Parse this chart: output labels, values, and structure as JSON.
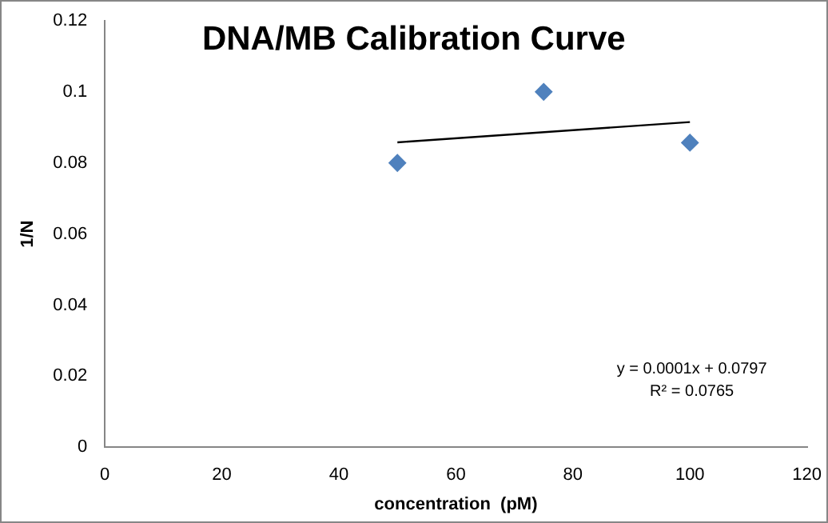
{
  "chart_data": {
    "type": "scatter",
    "title": "DNA/MB Calibration Curve",
    "xlabel": "concentration  (pM)",
    "ylabel": "1/N",
    "x": [
      50,
      75,
      100
    ],
    "series": [
      {
        "type": "scatter",
        "color": "#4f81bd",
        "values": [
          0.08,
          0.1,
          0.0857
        ]
      },
      {
        "type": "line",
        "color": "#000000",
        "x": [
          50,
          100
        ],
        "values": [
          0.0858,
          0.0915
        ],
        "marker": "none"
      }
    ],
    "marker": "diamond",
    "grid": false,
    "legend": false,
    "xlim": [
      0,
      120
    ],
    "xticks": [
      0,
      20,
      40,
      60,
      80,
      100,
      120
    ],
    "ylim": [
      0,
      0.12
    ],
    "yticks": [
      0,
      0.02,
      0.04,
      0.06,
      0.08,
      0.1,
      0.12
    ],
    "annotations": [
      "y = 0.0001x + 0.0797",
      "R² = 0.0765"
    ]
  }
}
